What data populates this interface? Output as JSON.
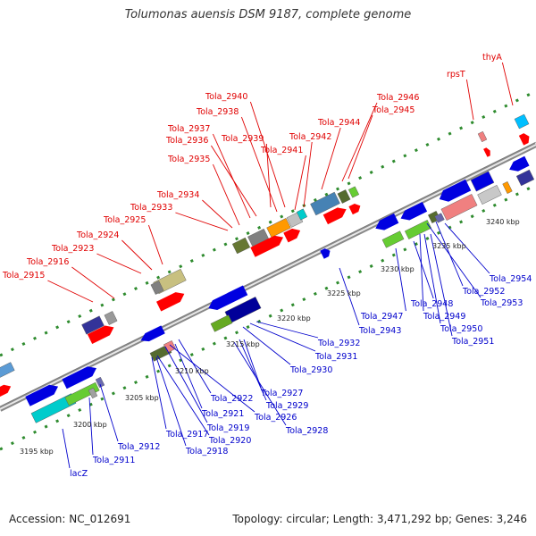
{
  "title": "Tolumonas auensis DSM 9187, complete genome",
  "accession": "Accession: NC_012691",
  "summary": "Topology: circular; Length: 3,471,292 bp; Genes: 3,246",
  "ticks": [
    "3195 kbp",
    "3200 kbp",
    "3205 kbp",
    "3210 kbp",
    "3215 kbp",
    "3220 kbp",
    "3225 kbp",
    "3230 kbp",
    "3235 kbp",
    "3240 kbp"
  ],
  "colors": {
    "forward_label": "#e00000",
    "reverse_label": "#0000cc",
    "backbone": "#888888"
  },
  "labels_forward": [
    "thyA",
    "rpsT",
    "Tola_2940",
    "Tola_2938",
    "Tola_2946",
    "Tola_2945",
    "Tola_2937",
    "Tola_2936",
    "Tola_2939",
    "Tola_2944",
    "Tola_2942",
    "Tola_2941",
    "Tola_2935",
    "Tola_2934",
    "Tola_2933",
    "Tola_2925",
    "Tola_2924",
    "Tola_2923",
    "Tola_2916",
    "Tola_2915"
  ],
  "labels_reverse": [
    "Tola_2954",
    "Tola_2952",
    "Tola_2953",
    "Tola_2948",
    "Tola_2947",
    "Tola_2949",
    "Tola_2950",
    "Tola_2951",
    "Tola_2943",
    "Tola_2932",
    "Tola_2931",
    "Tola_2930",
    "Tola_2927",
    "Tola_2929",
    "Tola_2922",
    "Tola_2921",
    "Tola_2926",
    "Tola_2919",
    "Tola_2928",
    "Tola_2917",
    "Tola_2920",
    "Tola_2912",
    "Tola_2918",
    "Tola_2911",
    "lacZ"
  ]
}
